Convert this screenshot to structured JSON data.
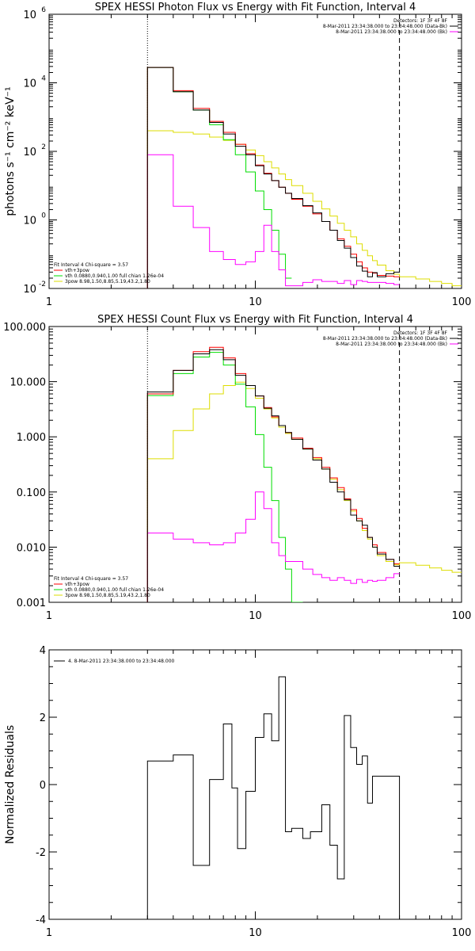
{
  "chart_data": [
    {
      "type": "line",
      "title": "SPEX HESSI Photon Flux vs Energy with Fit Function, Interval 4",
      "xlabel": "",
      "ylabel": "photons s⁻¹ cm⁻² keV⁻¹",
      "xscale": "log",
      "yscale": "log",
      "xlim": [
        1,
        100
      ],
      "ylim": [
        0.01,
        1000000
      ],
      "xticks": [
        {
          "v": 1,
          "label": "1"
        },
        {
          "v": 10,
          "label": "10"
        },
        {
          "v": 100,
          "label": "100"
        }
      ],
      "yticks": [
        {
          "v": 0.01,
          "base": "10",
          "exp": "-2"
        },
        {
          "v": 1,
          "base": "10",
          "exp": "0"
        },
        {
          "v": 100,
          "base": "10",
          "exp": "2"
        },
        {
          "v": 10000,
          "base": "10",
          "exp": "4"
        },
        {
          "v": 1000000,
          "base": "10",
          "exp": "6"
        }
      ],
      "dotted_line_x": 3,
      "dashed_line_x": 50,
      "legend_top_right": [
        {
          "text": "Detectors: 1F 3F 4F 8F",
          "color": ""
        },
        {
          "text": "8-Mar-2011 23:34:38.000 to 23:34:48.000 (Data-Bk)",
          "color": "#000000"
        },
        {
          "text": "8-Mar-2011 23:34:38.000 to 23:34:48.000 (Bk)",
          "color": "#ff00ff"
        }
      ],
      "legend_bottom_left": [
        {
          "text": "Fit Interval  4    Chi-square = 3.57",
          "color": ""
        },
        {
          "text": "vth+3pow",
          "color": "#ff0000"
        },
        {
          "text": "vth 0.0880,0.940,1.00  full chian 1.26e-04",
          "color": "#00dd00"
        },
        {
          "text": "3pow 8.98,1.50,8.85,5.19,43.2,1.80",
          "color": "#dddd00"
        }
      ],
      "series": [
        {
          "name": "Data-Bk",
          "color": "#000000",
          "edges": [
            3,
            4,
            5,
            6,
            7,
            8,
            9,
            10,
            11,
            12,
            13,
            14,
            15,
            17,
            19,
            21,
            23,
            25,
            27,
            29,
            31,
            33,
            35,
            37,
            39,
            43,
            47,
            50
          ],
          "values": [
            28000,
            5500,
            1600,
            700,
            320,
            140,
            80,
            38,
            22,
            14,
            9,
            6,
            4.2,
            2.6,
            1.6,
            0.9,
            0.5,
            0.25,
            0.15,
            0.08,
            0.045,
            0.032,
            0.022,
            0.029,
            0.022,
            0.027,
            0.03
          ]
        },
        {
          "name": "vth+3pow",
          "color": "#ff0000",
          "edges": [
            3,
            4,
            5,
            6,
            7,
            8,
            9,
            10,
            11,
            12,
            13,
            14,
            15,
            17,
            19,
            21,
            23,
            25,
            27,
            29,
            31,
            33,
            35,
            37,
            39,
            43,
            47,
            50
          ],
          "values": [
            28000,
            5900,
            1800,
            750,
            360,
            160,
            85,
            40,
            23,
            14,
            9,
            6,
            4.0,
            2.5,
            1.5,
            0.9,
            0.5,
            0.28,
            0.17,
            0.1,
            0.06,
            0.04,
            0.03,
            0.028,
            0.024,
            0.023,
            0.022
          ]
        },
        {
          "name": "vth",
          "color": "#00dd00",
          "edges": [
            3,
            4,
            5,
            6,
            7,
            8,
            9,
            10,
            11,
            12,
            13,
            14,
            15
          ],
          "values": [
            28000,
            5500,
            1600,
            600,
            220,
            80,
            25,
            7,
            2,
            0.5,
            0.1,
            0.02
          ]
        },
        {
          "name": "3pow",
          "color": "#dddd00",
          "edges": [
            3,
            4,
            5,
            6,
            7,
            8,
            9,
            10,
            11,
            12,
            13,
            14,
            15,
            17,
            19,
            21,
            23,
            25,
            27,
            29,
            31,
            33,
            35,
            37,
            39,
            43,
            47,
            50,
            60,
            70,
            80,
            90,
            100
          ],
          "values": [
            400,
            360,
            320,
            260,
            210,
            160,
            110,
            75,
            50,
            33,
            22,
            15,
            10,
            6,
            3.5,
            2.1,
            1.3,
            0.8,
            0.5,
            0.32,
            0.2,
            0.13,
            0.09,
            0.065,
            0.048,
            0.033,
            0.026,
            0.022,
            0.019,
            0.016,
            0.014,
            0.012
          ]
        },
        {
          "name": "Bk",
          "color": "#ff00ff",
          "edges": [
            3,
            4,
            5,
            6,
            7,
            8,
            9,
            10,
            11,
            12,
            13,
            14,
            15,
            17,
            19,
            21,
            23,
            25,
            27,
            29,
            31,
            33,
            35,
            37,
            39,
            43,
            47,
            50
          ],
          "values": [
            80,
            2.5,
            0.6,
            0.12,
            0.07,
            0.05,
            0.06,
            0.12,
            0.7,
            0.12,
            0.035,
            0.012,
            0.012,
            0.015,
            0.018,
            0.016,
            0.016,
            0.014,
            0.017,
            0.013,
            0.017,
            0.016,
            0.015,
            0.015,
            0.015,
            0.014,
            0.013
          ]
        }
      ]
    },
    {
      "type": "line",
      "title": "SPEX HESSI Count Flux vs Energy with Fit Function, Interval 4",
      "xlabel": "",
      "ylabel": "",
      "xscale": "log",
      "yscale": "log",
      "xlim": [
        1,
        100
      ],
      "ylim": [
        0.001,
        100
      ],
      "xticks": [
        {
          "v": 1,
          "label": "1"
        },
        {
          "v": 10,
          "label": "10"
        },
        {
          "v": 100,
          "label": "100"
        }
      ],
      "yticks": [
        {
          "v": 0.001,
          "label": "0.001"
        },
        {
          "v": 0.01,
          "label": "0.010"
        },
        {
          "v": 0.1,
          "label": "0.100"
        },
        {
          "v": 1,
          "label": "1.000"
        },
        {
          "v": 10,
          "label": "10.000"
        },
        {
          "v": 100,
          "label": "100.000"
        }
      ],
      "dotted_line_x": 3,
      "dashed_line_x": 50,
      "legend_top_right": [
        {
          "text": "Detectors: 1F 3F 4F 8F",
          "color": ""
        },
        {
          "text": "8-Mar-2011 23:34:38.000 to 23:34:48.000 (Data-Bk)",
          "color": "#000000"
        },
        {
          "text": "8-Mar-2011 23:34:38.000 to 23:34:48.000 (Bk)",
          "color": "#ff00ff"
        }
      ],
      "legend_bottom_left": [
        {
          "text": "Fit Interval  4    Chi-square = 3.57",
          "color": ""
        },
        {
          "text": "vth+3pow",
          "color": "#ff0000"
        },
        {
          "text": "vth 0.0880,0.940,1.00  full chian 1.26e-04",
          "color": "#00dd00"
        },
        {
          "text": "3pow 8.98,1.50,8.85,5.19,43.2,1.80",
          "color": "#dddd00"
        }
      ],
      "series": [
        {
          "name": "Data-Bk",
          "color": "#000000",
          "edges": [
            3,
            4,
            5,
            6,
            7,
            8,
            9,
            10,
            11,
            12,
            13,
            14,
            15,
            17,
            19,
            21,
            23,
            25,
            27,
            29,
            31,
            33,
            35,
            37,
            39,
            43,
            47,
            50
          ],
          "values": [
            6.5,
            16,
            32,
            38,
            25,
            13,
            8.5,
            5.5,
            3.3,
            2.4,
            1.6,
            1.2,
            0.9,
            0.6,
            0.38,
            0.26,
            0.15,
            0.1,
            0.072,
            0.038,
            0.03,
            0.025,
            0.015,
            0.01,
            0.0075,
            0.006,
            0.0045
          ]
        },
        {
          "name": "vth+3pow",
          "color": "#ff0000",
          "edges": [
            3,
            4,
            5,
            6,
            7,
            8,
            9,
            10,
            11,
            12,
            13,
            14,
            15,
            17,
            19,
            21,
            23,
            25,
            27,
            29,
            31,
            33,
            35,
            37,
            39,
            43,
            47,
            50
          ],
          "values": [
            6,
            16,
            35,
            42,
            27,
            14,
            8.5,
            5.5,
            3.4,
            2.3,
            1.6,
            1.2,
            0.95,
            0.62,
            0.42,
            0.28,
            0.18,
            0.12,
            0.075,
            0.048,
            0.033,
            0.022,
            0.015,
            0.011,
            0.008,
            0.006,
            0.005
          ]
        },
        {
          "name": "vth",
          "color": "#00dd00",
          "edges": [
            3,
            4,
            5,
            6,
            7,
            8,
            9,
            10,
            11,
            12,
            13,
            14,
            15,
            17
          ],
          "values": [
            5.6,
            14,
            28,
            34,
            20,
            9,
            3.5,
            1.1,
            0.28,
            0.07,
            0.015,
            0.004,
            0.001
          ]
        },
        {
          "name": "3pow",
          "color": "#dddd00",
          "edges": [
            3,
            4,
            5,
            6,
            7,
            8,
            9,
            10,
            11,
            12,
            13,
            14,
            15,
            17,
            19,
            21,
            23,
            25,
            27,
            29,
            31,
            33,
            35,
            37,
            39,
            43,
            47,
            50,
            60,
            70,
            80,
            90,
            100
          ],
          "values": [
            0.4,
            1.3,
            3.2,
            6,
            8.5,
            9.8,
            7.5,
            5,
            3.2,
            2.2,
            1.5,
            1.15,
            0.9,
            0.6,
            0.4,
            0.26,
            0.17,
            0.11,
            0.07,
            0.045,
            0.03,
            0.02,
            0.014,
            0.01,
            0.007,
            0.0055,
            0.0048,
            0.0052,
            0.0047,
            0.0042,
            0.0038,
            0.0035
          ]
        },
        {
          "name": "Bk",
          "color": "#ff00ff",
          "edges": [
            3,
            4,
            5,
            6,
            7,
            8,
            9,
            10,
            11,
            12,
            13,
            14,
            15,
            17,
            19,
            21,
            23,
            25,
            27,
            29,
            31,
            33,
            35,
            37,
            39,
            43,
            47,
            50
          ],
          "values": [
            0.018,
            0.014,
            0.012,
            0.011,
            0.012,
            0.018,
            0.032,
            0.1,
            0.05,
            0.012,
            0.007,
            0.0055,
            0.0055,
            0.004,
            0.0032,
            0.0028,
            0.0025,
            0.0028,
            0.0025,
            0.0022,
            0.0026,
            0.0023,
            0.0025,
            0.0024,
            0.0025,
            0.0028,
            0.0033
          ]
        }
      ]
    },
    {
      "type": "line",
      "title": "",
      "xlabel": "",
      "ylabel": "Normalized Residuals",
      "xscale": "log",
      "yscale": "linear",
      "xlim": [
        1,
        100
      ],
      "ylim": [
        -4,
        4
      ],
      "xticks": [
        {
          "v": 1,
          "label": "1"
        },
        {
          "v": 10,
          "label": "10"
        },
        {
          "v": 100,
          "label": "100"
        }
      ],
      "yticks": [
        {
          "v": -4,
          "label": "-4"
        },
        {
          "v": -2,
          "label": "-2"
        },
        {
          "v": 0,
          "label": "0"
        },
        {
          "v": 2,
          "label": "2"
        },
        {
          "v": 4,
          "label": "4"
        }
      ],
      "legend_top_left": [
        {
          "text": "4.  8-Mar-2011 23:34:38.000 to 23:34:48.000",
          "color": "#000000"
        }
      ],
      "series": [
        {
          "name": "4.  8-Mar-2011 23:34:38.000 to 23:34:48.000",
          "color": "#000000",
          "edges": [
            3,
            4,
            5,
            6,
            7,
            7.7,
            8.2,
            9,
            10,
            11,
            12,
            13,
            14,
            15,
            17,
            18.5,
            21,
            23,
            25,
            27,
            29,
            31,
            33,
            35,
            37,
            39,
            43,
            47,
            50
          ],
          "values": [
            0.7,
            0.88,
            -2.4,
            0.15,
            1.8,
            -0.1,
            -1.9,
            -0.2,
            1.4,
            2.1,
            1.3,
            3.2,
            -1.4,
            -1.3,
            -1.6,
            -1.4,
            -0.6,
            -1.8,
            -2.8,
            2.05,
            1.1,
            0.6,
            0.85,
            -0.55,
            0.25,
            0.25,
            0.25,
            0.25
          ]
        }
      ]
    }
  ]
}
